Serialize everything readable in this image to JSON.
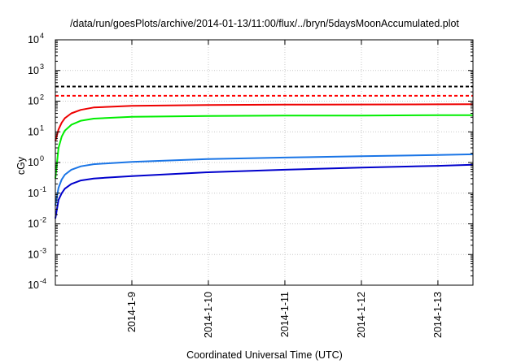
{
  "chart_data": {
    "type": "line",
    "title": "/data/run/goesPlots/archive/2014-01-13/11:00/flux/../bryn/5daysMoonAccumulated.plot",
    "xlabel": "Coordinated Universal Time (UTC)",
    "ylabel": "cGy",
    "y_scale": "log",
    "ylim": [
      0.0001,
      10000
    ],
    "xlim": [
      "2014-01-08T00:00",
      "2014-01-13T11:00"
    ],
    "x_ticks": [
      "2014-1-9",
      "2014-1-10",
      "2014-1-11",
      "2014-1-12",
      "2014-1-13"
    ],
    "y_ticks": [
      {
        "base": "10",
        "exp": "-4",
        "value": 0.0001
      },
      {
        "base": "10",
        "exp": "-3",
        "value": 0.001
      },
      {
        "base": "10",
        "exp": "-2",
        "value": 0.01
      },
      {
        "base": "10",
        "exp": "-1",
        "value": 0.1
      },
      {
        "base": "10",
        "exp": "0",
        "value": 1
      },
      {
        "base": "10",
        "exp": "1",
        "value": 10
      },
      {
        "base": "10",
        "exp": "2",
        "value": 100
      },
      {
        "base": "10",
        "exp": "3",
        "value": 1000
      },
      {
        "base": "10",
        "exp": "4",
        "value": 10000
      }
    ],
    "grid": true,
    "legend": "none",
    "thresholds": [
      {
        "value": 300,
        "color": "#000000",
        "style": "dashed"
      },
      {
        "value": 150,
        "color": "#ff0000",
        "style": "dashed"
      }
    ],
    "series": [
      {
        "color": "#ee0000",
        "x": [
          "2014-01-08T00:00",
          "2014-01-08T01:00",
          "2014-01-08T02:00",
          "2014-01-08T03:00",
          "2014-01-08T05:00",
          "2014-01-08T08:00",
          "2014-01-08T12:00",
          "2014-01-09T00:00",
          "2014-01-10T00:00",
          "2014-01-11T00:00",
          "2014-01-12T00:00",
          "2014-01-13T00:00",
          "2014-01-13T11:00"
        ],
        "values": [
          5,
          12,
          20,
          28,
          40,
          52,
          62,
          70,
          75,
          77,
          78,
          79,
          80
        ]
      },
      {
        "color": "#00ee00",
        "x": [
          "2014-01-08T00:00",
          "2014-01-08T01:00",
          "2014-01-08T02:00",
          "2014-01-08T03:00",
          "2014-01-08T05:00",
          "2014-01-08T08:00",
          "2014-01-08T12:00",
          "2014-01-09T00:00",
          "2014-01-10T00:00",
          "2014-01-11T00:00",
          "2014-01-12T00:00",
          "2014-01-13T00:00",
          "2014-01-13T11:00"
        ],
        "values": [
          0.3,
          3,
          7,
          11,
          17,
          23,
          27,
          31,
          33,
          34,
          34,
          35,
          35
        ]
      },
      {
        "color": "#1a75e6",
        "x": [
          "2014-01-08T00:00",
          "2014-01-08T01:00",
          "2014-01-08T02:00",
          "2014-01-08T03:00",
          "2014-01-08T05:00",
          "2014-01-08T08:00",
          "2014-01-08T12:00",
          "2014-01-09T00:00",
          "2014-01-10T00:00",
          "2014-01-11T00:00",
          "2014-01-12T00:00",
          "2014-01-13T00:00",
          "2014-01-13T11:00"
        ],
        "values": [
          0.04,
          0.15,
          0.28,
          0.4,
          0.58,
          0.75,
          0.88,
          1.05,
          1.3,
          1.45,
          1.6,
          1.75,
          1.85
        ]
      },
      {
        "color": "#0000cc",
        "x": [
          "2014-01-08T00:00",
          "2014-01-08T01:00",
          "2014-01-08T02:00",
          "2014-01-08T03:00",
          "2014-01-08T05:00",
          "2014-01-08T08:00",
          "2014-01-08T12:00",
          "2014-01-09T00:00",
          "2014-01-10T00:00",
          "2014-01-11T00:00",
          "2014-01-12T00:00",
          "2014-01-13T00:00",
          "2014-01-13T11:00"
        ],
        "values": [
          0.015,
          0.06,
          0.1,
          0.14,
          0.2,
          0.26,
          0.3,
          0.36,
          0.48,
          0.58,
          0.68,
          0.78,
          0.85
        ]
      }
    ]
  }
}
